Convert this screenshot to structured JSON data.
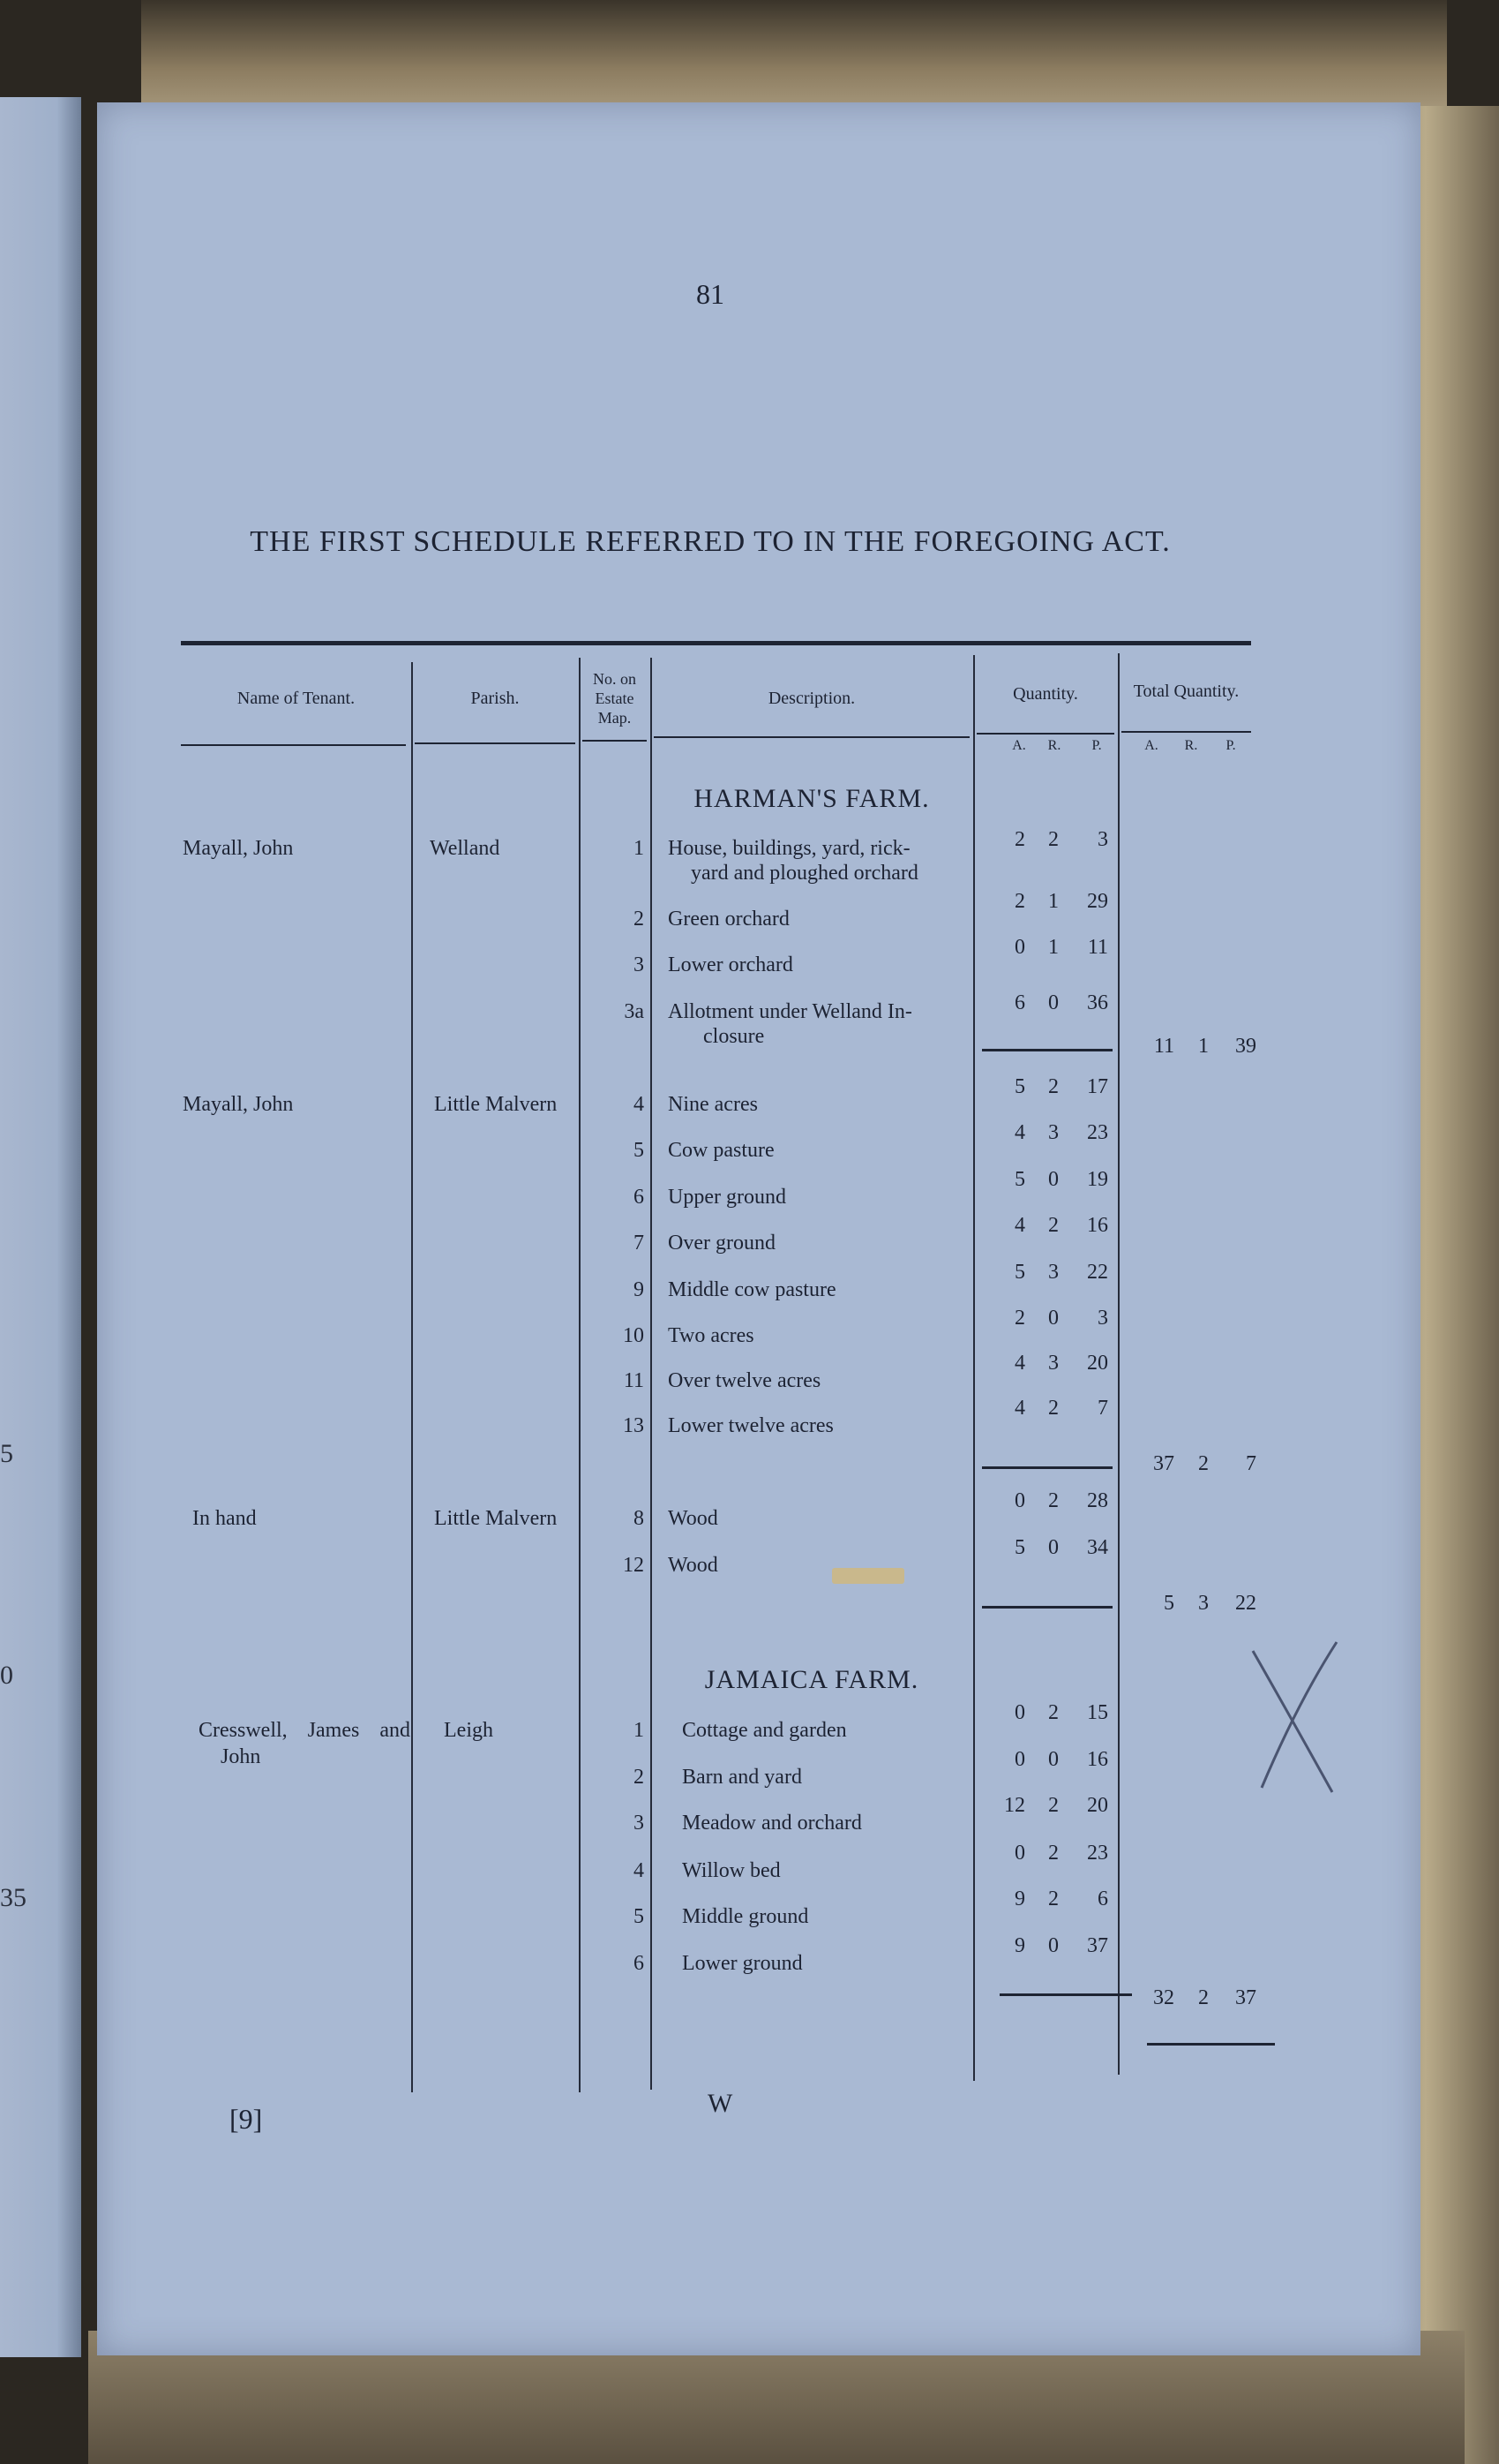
{
  "page_number": "81",
  "title": "THE FIRST SCHEDULE REFERRED TO IN THE FOREGOING ACT.",
  "headers": {
    "tenant": "Name of Tenant.",
    "parish": "Parish.",
    "map_no": "No. on Estate Map.",
    "description": "Description.",
    "quantity": "Quantity.",
    "total_quantity": "Total Quantity.",
    "units": [
      "A.",
      "R.",
      "P."
    ]
  },
  "farms": [
    {
      "name": "HARMAN'S FARM.",
      "groups": [
        {
          "tenant": "Mayall, John",
          "parish": "Welland",
          "rows": [
            {
              "no": "1",
              "description": "House, buildings, yard, rick-",
              "description_cont": "yard and ploughed orchard",
              "a": "2",
              "r": "2",
              "p": "3"
            },
            {
              "no": "2",
              "description": "Green orchard",
              "a": "2",
              "r": "1",
              "p": "29"
            },
            {
              "no": "3",
              "description": "Lower orchard",
              "a": "0",
              "r": "1",
              "p": "11"
            },
            {
              "no": "3a",
              "description": "Allotment under Welland In-",
              "description_cont": "closure",
              "a": "6",
              "r": "0",
              "p": "36"
            }
          ],
          "total": {
            "a": "11",
            "r": "1",
            "p": "39"
          }
        },
        {
          "tenant": "Mayall, John",
          "parish": "Little Malvern",
          "rows": [
            {
              "no": "4",
              "description": "Nine acres",
              "a": "5",
              "r": "2",
              "p": "17"
            },
            {
              "no": "5",
              "description": "Cow pasture",
              "a": "4",
              "r": "3",
              "p": "23"
            },
            {
              "no": "6",
              "description": "Upper ground",
              "a": "5",
              "r": "0",
              "p": "19"
            },
            {
              "no": "7",
              "description": "Over ground",
              "a": "4",
              "r": "2",
              "p": "16"
            },
            {
              "no": "9",
              "description": "Middle cow pasture",
              "a": "5",
              "r": "3",
              "p": "22"
            },
            {
              "no": "10",
              "description": "Two acres",
              "a": "2",
              "r": "0",
              "p": "3"
            },
            {
              "no": "11",
              "description": "Over twelve acres",
              "a": "4",
              "r": "3",
              "p": "20"
            },
            {
              "no": "13",
              "description": "Lower twelve acres",
              "a": "4",
              "r": "2",
              "p": "7"
            }
          ],
          "total": {
            "a": "37",
            "r": "2",
            "p": "7"
          }
        },
        {
          "tenant": "In hand",
          "parish": "Little Malvern",
          "rows": [
            {
              "no": "8",
              "description": "Wood",
              "a": "0",
              "r": "2",
              "p": "28"
            },
            {
              "no": "12",
              "description": "Wood",
              "a": "5",
              "r": "0",
              "p": "34"
            }
          ],
          "total": {
            "a": "5",
            "r": "3",
            "p": "22"
          }
        }
      ]
    },
    {
      "name": "JAMAICA FARM.",
      "groups": [
        {
          "tenant": "Cresswell, James and",
          "tenant_cont": "John",
          "parish": "Leigh",
          "rows": [
            {
              "no": "1",
              "description": "Cottage and garden",
              "a": "0",
              "r": "2",
              "p": "15"
            },
            {
              "no": "2",
              "description": "Barn and yard",
              "a": "0",
              "r": "0",
              "p": "16"
            },
            {
              "no": "3",
              "description": "Meadow and orchard",
              "a": "12",
              "r": "2",
              "p": "20"
            },
            {
              "no": "4",
              "description": "Willow bed",
              "a": "0",
              "r": "2",
              "p": "23"
            },
            {
              "no": "5",
              "description": "Middle ground",
              "a": "9",
              "r": "2",
              "p": "6"
            },
            {
              "no": "6",
              "description": "Lower ground",
              "a": "9",
              "r": "0",
              "p": "37"
            }
          ],
          "total": {
            "a": "32",
            "r": "2",
            "p": "37"
          }
        }
      ]
    }
  ],
  "footer": {
    "signature_mark": "[9]",
    "gathering_mark": "W"
  },
  "left_page_fragments": [
    "5",
    "0",
    "35"
  ],
  "colors": {
    "paper": "#a9b9d3",
    "ink": "#1d2333",
    "pencil": "#4a5470"
  }
}
